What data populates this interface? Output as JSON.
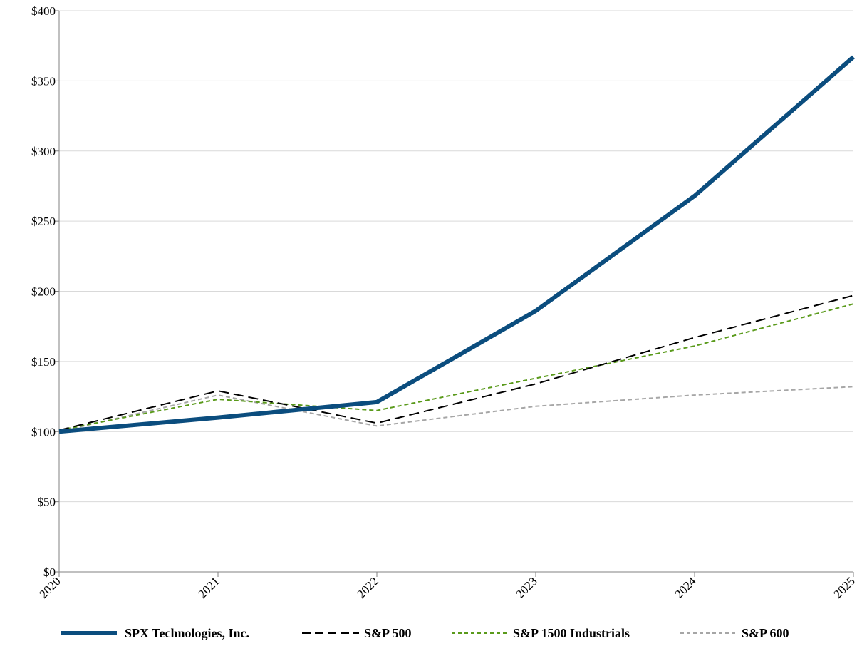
{
  "chart_data": {
    "type": "line",
    "x": [
      "2020",
      "2021",
      "2022",
      "2023",
      "2024",
      "2025"
    ],
    "yticks": [
      "$0",
      "$50",
      "$100",
      "$150",
      "$200",
      "$250",
      "$300",
      "$350",
      "$400"
    ],
    "ylim": [
      0,
      400
    ],
    "grid": true,
    "legend_placement": "bottom",
    "series": [
      {
        "name": "SPX Technologies, Inc.",
        "values": [
          100,
          110,
          121,
          186,
          268,
          367
        ],
        "color": "#0b4d7e",
        "style": "solid-thick"
      },
      {
        "name": "S&P 500",
        "values": [
          101,
          129,
          106,
          134,
          167,
          197
        ],
        "color": "#000000",
        "style": "dashed"
      },
      {
        "name": "S&P 1500 Industrials",
        "values": [
          101,
          123,
          115,
          138,
          161,
          191
        ],
        "color": "#5a9a1b",
        "style": "dashed-fine"
      },
      {
        "name": "S&P 600",
        "values": [
          100,
          126,
          104,
          118,
          126,
          132
        ],
        "color": "#a6a6a6",
        "style": "dashed-fine"
      }
    ]
  }
}
